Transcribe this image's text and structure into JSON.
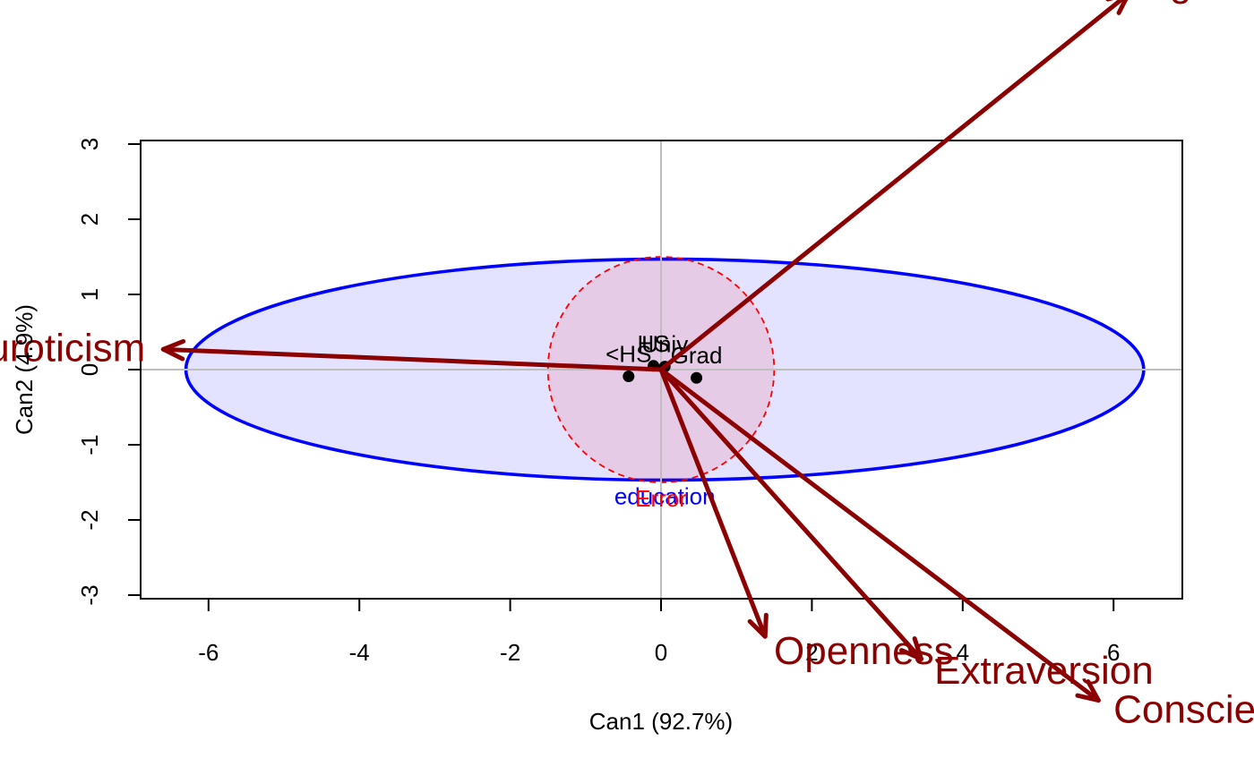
{
  "chart_data": {
    "type": "scatter",
    "title": "",
    "xlabel": "Can1 (92.7%)",
    "ylabel": "Can2 (4.9%)",
    "xlim": [
      -6.9,
      6.9
    ],
    "ylim": [
      -3.1,
      3.1
    ],
    "x_ticks": [
      "-6",
      "-4",
      "-2",
      "0",
      "2",
      "4",
      "6"
    ],
    "y_ticks": [
      "-3",
      "-2",
      "-1",
      "0",
      "1",
      "2",
      "3"
    ],
    "grid": "reference lines at x=0 and y=0",
    "group_means": [
      {
        "label": "<HS",
        "x": -0.43,
        "y": -0.09
      },
      {
        "label": "HS",
        "x": -0.1,
        "y": 0.05
      },
      {
        "label": "Univ",
        "x": 0.05,
        "y": 0.04
      },
      {
        "label": "Grad",
        "x": 0.47,
        "y": -0.11
      }
    ],
    "ellipses": [
      {
        "label": "education",
        "cx": 0.05,
        "cy": 0.0,
        "rx": 6.35,
        "ry": 1.47,
        "color": "#0000ff",
        "fill": "rgba(0,0,255,0.11)",
        "dashed": false
      },
      {
        "label": "Error",
        "cx": 0.0,
        "cy": 0.0,
        "rx": 1.5,
        "ry": 1.5,
        "color": "#ff0000",
        "fill": "rgba(255,0,0,0.10)",
        "dashed": true
      }
    ],
    "vectors": [
      {
        "label": "Neuroticism",
        "x": -6.6,
        "y": 0.27
      },
      {
        "label": "Agreeableness",
        "x": 6.2,
        "y": 5.0
      },
      {
        "label": "Openness",
        "x": 1.38,
        "y": -3.55
      },
      {
        "label": "Extraversion",
        "x": 3.45,
        "y": -3.85
      },
      {
        "label": "Conscientiousness",
        "x": 5.8,
        "y": -4.4
      }
    ],
    "vector_color": "#8b0000"
  }
}
